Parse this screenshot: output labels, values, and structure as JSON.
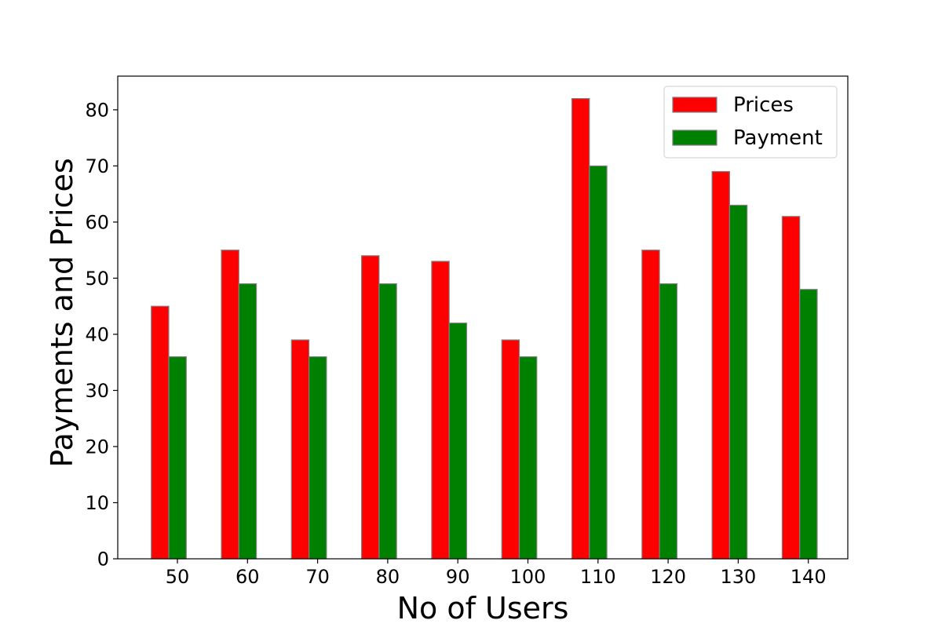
{
  "chart_data": {
    "type": "bar",
    "title": "",
    "xlabel": "No of Users",
    "ylabel": "Payments and Prices",
    "categories": [
      "50",
      "60",
      "70",
      "80",
      "90",
      "100",
      "110",
      "120",
      "130",
      "140"
    ],
    "series": [
      {
        "name": "Prices",
        "color": "#ff0000",
        "values": [
          45,
          55,
          39,
          54,
          53,
          39,
          82,
          55,
          69,
          61
        ]
      },
      {
        "name": "Payment",
        "color": "#008000",
        "values": [
          36,
          49,
          36,
          49,
          42,
          36,
          70,
          49,
          63,
          48
        ]
      }
    ],
    "ylim": [
      0,
      86
    ],
    "yticks": [
      0,
      10,
      20,
      30,
      40,
      50,
      60,
      70,
      80
    ],
    "grid": false,
    "legend_position": "top-right",
    "bar_edge_color": "#808080"
  }
}
